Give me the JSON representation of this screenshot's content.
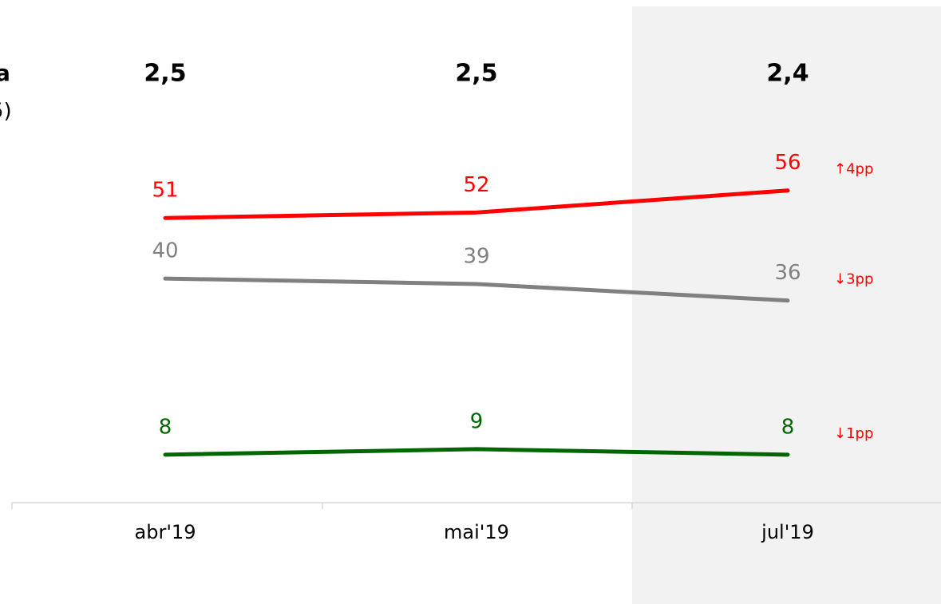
{
  "chart_data": {
    "type": "line",
    "annotations": [
      "a",
      "5)"
    ],
    "categories": [
      "abr'19",
      "mai'19",
      "jul'19"
    ],
    "highlight": 2,
    "totals": {
      "values": [
        2.5,
        2.5,
        2.4
      ],
      "value_labels": [
        "2,5",
        "2,5",
        "2,4"
      ]
    },
    "series": [
      {
        "color": "#ff0000",
        "values": [
          51,
          52,
          56
        ],
        "change_label": "↑4pp"
      },
      {
        "color": "#808080",
        "values": [
          40,
          39,
          36
        ],
        "change_label": "↓3pp"
      },
      {
        "color": "#006600",
        "values": [
          8,
          9,
          8
        ],
        "change_label": "↓1pp"
      }
    ],
    "change_color": "#ff0000",
    "ylim": [
      0,
      88
    ]
  }
}
